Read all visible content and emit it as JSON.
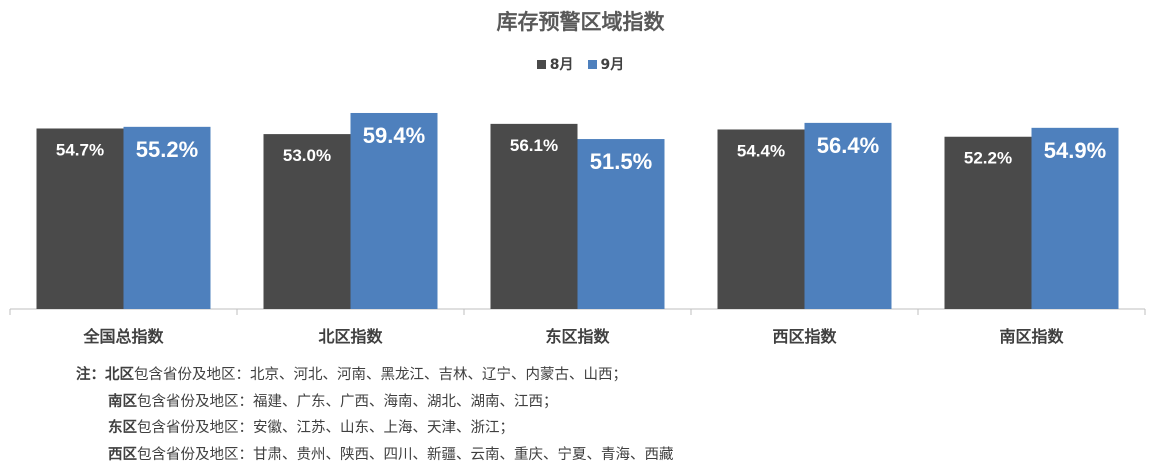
{
  "chart_data": {
    "type": "bar",
    "title": "库存预警区域指数",
    "categories": [
      "全国总指数",
      "北区指数",
      "东区指数",
      "西区指数",
      "南区指数"
    ],
    "series": [
      {
        "name": "8月",
        "color": "#4a4a4a",
        "values": [
          54.7,
          53.0,
          56.1,
          54.4,
          52.2
        ],
        "labels": [
          "54.7%",
          "53.0%",
          "56.1%",
          "54.4%",
          "52.2%"
        ]
      },
      {
        "name": "9月",
        "color": "#4e80bd",
        "values": [
          55.2,
          59.4,
          51.5,
          56.4,
          54.9
        ],
        "labels": [
          "55.2%",
          "59.4%",
          "51.5%",
          "56.4%",
          "54.9%"
        ]
      }
    ],
    "ylim": [
      0,
      66
    ],
    "unit": "%",
    "legend": "top-center",
    "grid": false
  },
  "notes": {
    "prefix": "注：",
    "lines": [
      {
        "region": "北区",
        "text": "包含省份及地区：北京、河北、河南、黑龙江、吉林、辽宁、内蒙古、山西；"
      },
      {
        "region": "南区",
        "text": "包含省份及地区：福建、广东、广西、海南、湖北、湖南、江西；"
      },
      {
        "region": "东区",
        "text": "包含省份及地区：安徽、江苏、山东、上海、天津、浙江；"
      },
      {
        "region": "西区",
        "text": "包含省份及地区：甘肃、贵州、陕西、四川、新疆、云南、重庆、宁夏、青海、西藏"
      }
    ]
  }
}
